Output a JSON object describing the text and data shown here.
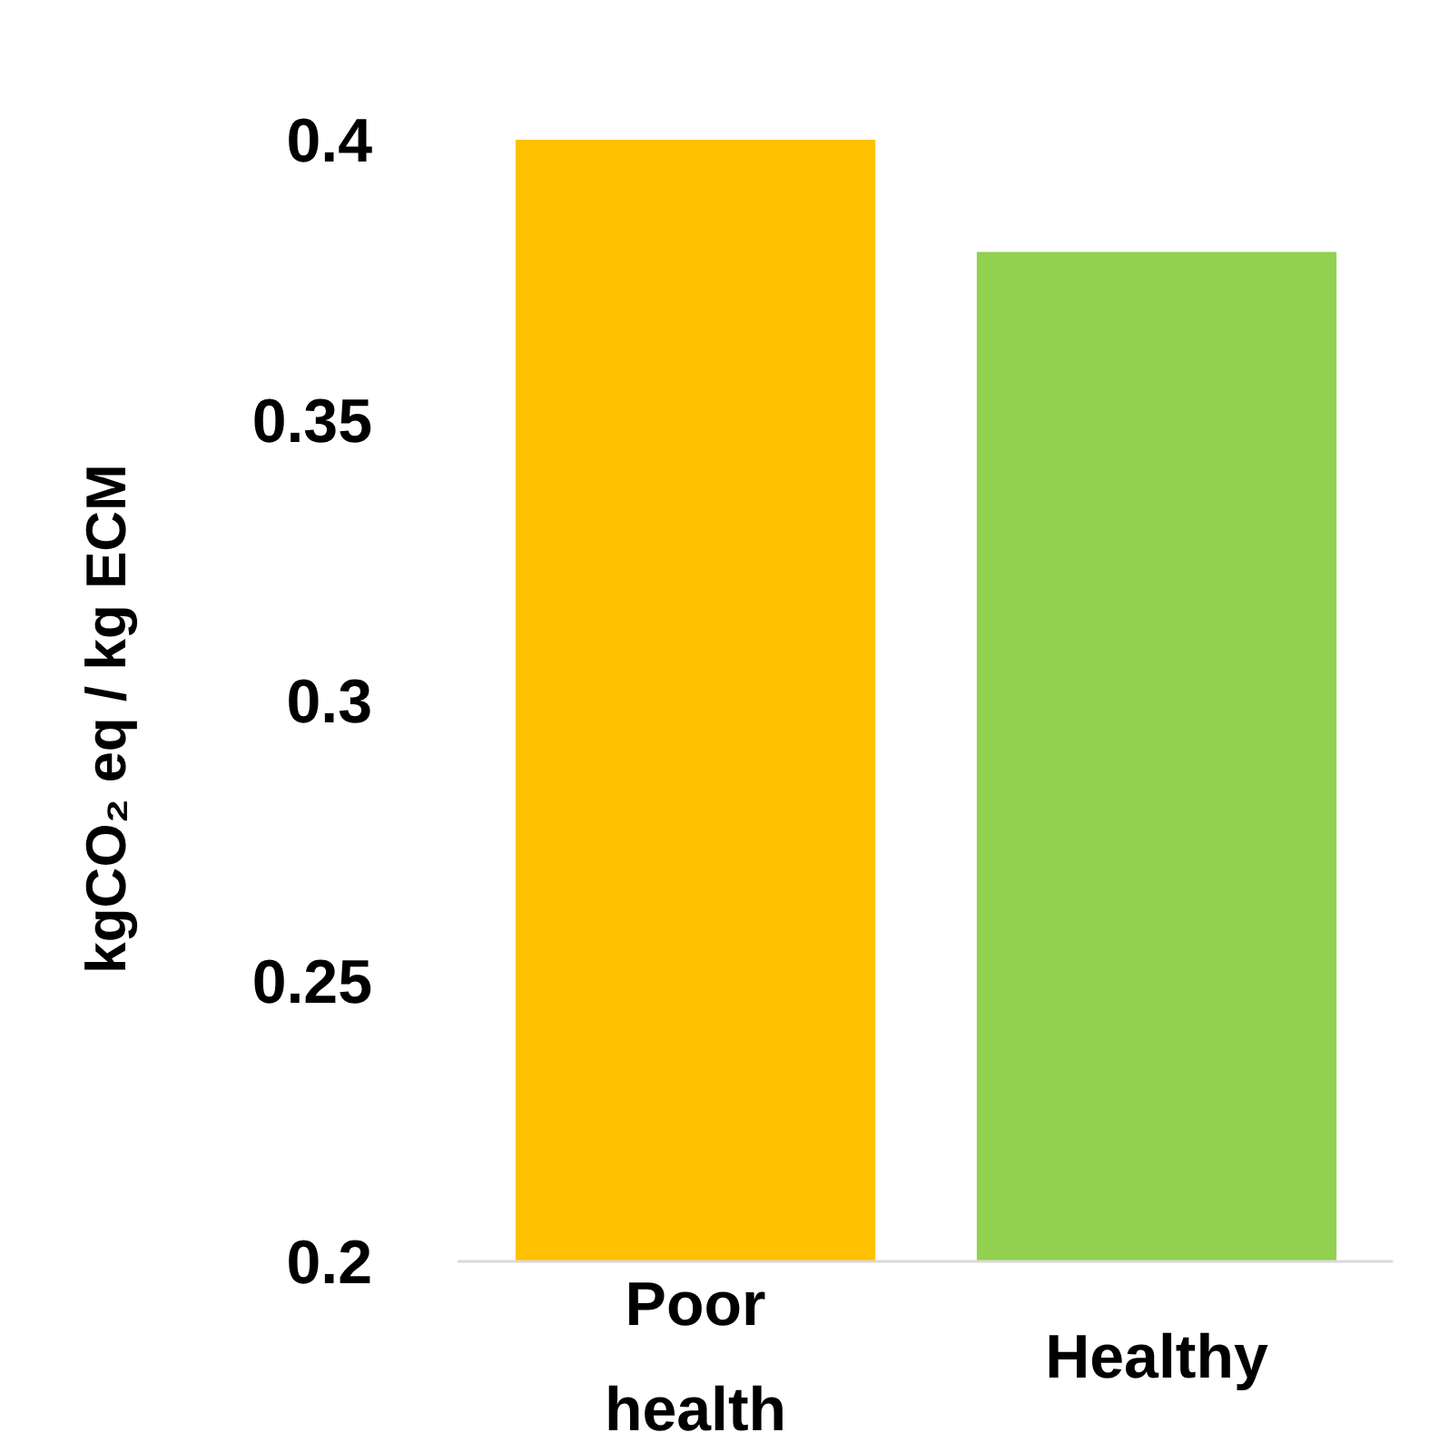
{
  "chart_data": {
    "type": "bar",
    "ylabel": "kgCO₂ eq / kg ECM",
    "categories": [
      "Poor health",
      "Healthy"
    ],
    "values": [
      0.4,
      0.38
    ],
    "colors": [
      "#ffc000",
      "#92d050"
    ],
    "ylim": [
      0.2,
      0.4
    ],
    "yticks": [
      0.2,
      0.25,
      0.3,
      0.35,
      0.4
    ],
    "grid": false
  }
}
